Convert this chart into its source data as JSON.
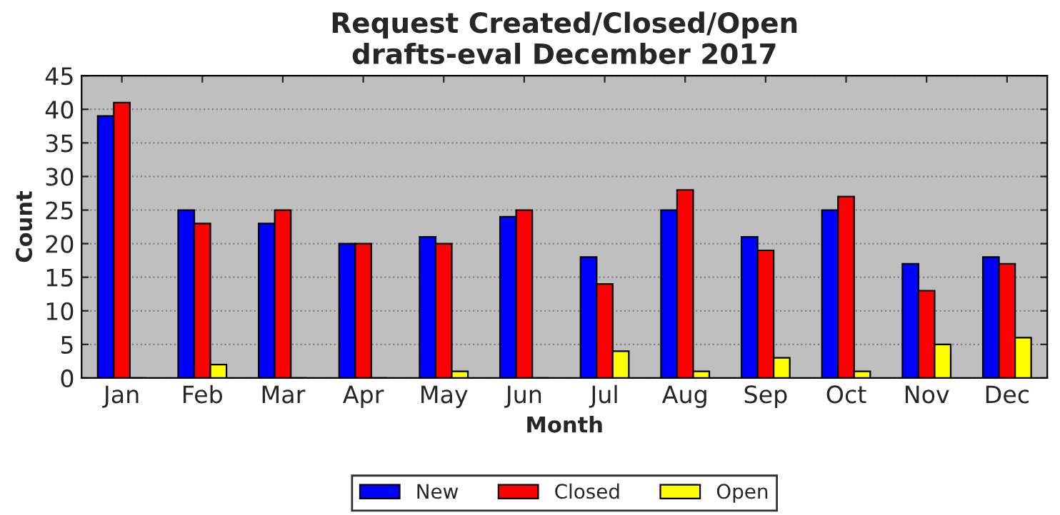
{
  "chart_data": {
    "type": "bar",
    "title": "Request Created/Closed/Open\ndrafts-eval December 2017",
    "xlabel": "Month",
    "ylabel": "Count",
    "categories": [
      "Jan",
      "Feb",
      "Mar",
      "Apr",
      "May",
      "Jun",
      "Jul",
      "Aug",
      "Sep",
      "Oct",
      "Nov",
      "Dec"
    ],
    "series": [
      {
        "name": "New",
        "color": "#0000ff",
        "values": [
          39,
          25,
          23,
          20,
          21,
          24,
          18,
          25,
          21,
          25,
          17,
          18
        ]
      },
      {
        "name": "Closed",
        "color": "#ff0000",
        "values": [
          41,
          23,
          25,
          20,
          20,
          25,
          14,
          28,
          19,
          27,
          13,
          17
        ]
      },
      {
        "name": "Open",
        "color": "#ffff00",
        "values": [
          0,
          2,
          0,
          0,
          1,
          0,
          4,
          1,
          3,
          1,
          5,
          6
        ]
      }
    ],
    "ylim": [
      0,
      45
    ],
    "yticks": [
      0,
      5,
      10,
      15,
      20,
      25,
      30,
      35,
      40,
      45
    ],
    "grid": "y",
    "legend": "bottom"
  }
}
